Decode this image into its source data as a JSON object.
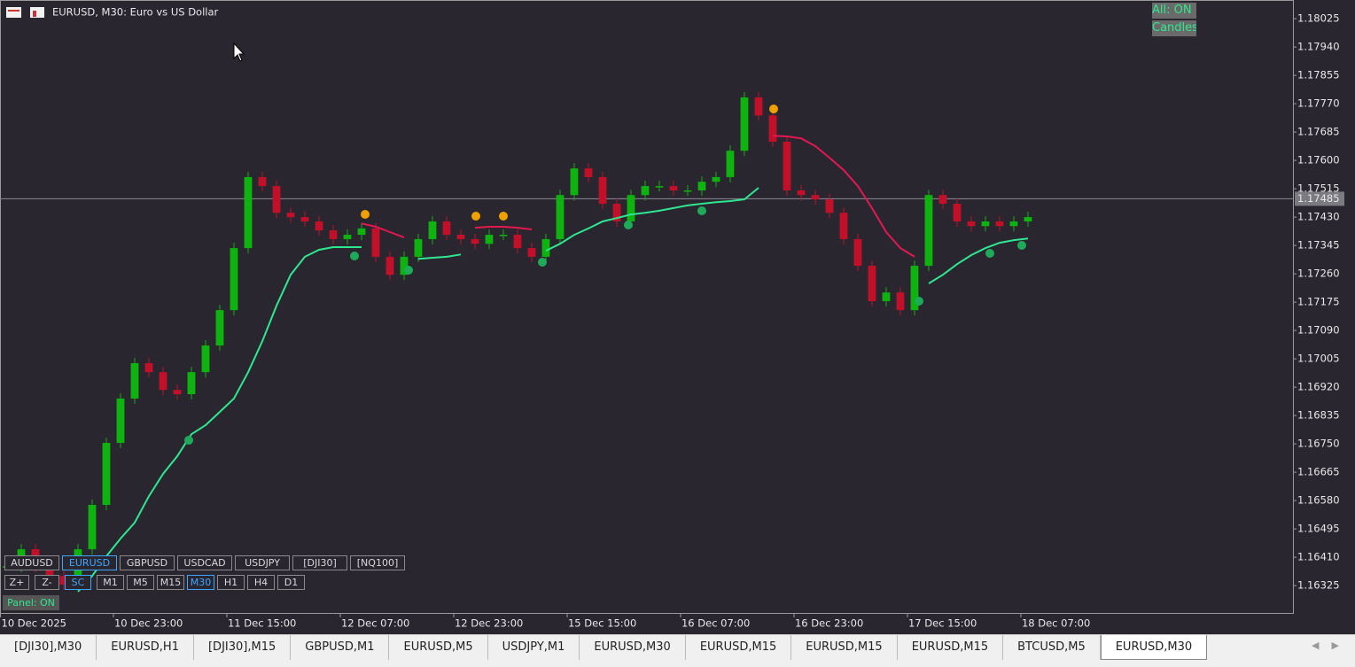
{
  "header": {
    "title": "EURUSD, M30:  Euro vs US Dollar"
  },
  "toggles": [
    "All: ON",
    "Candles"
  ],
  "chart_data": {
    "type": "candlestick",
    "close": [
      1.16381,
      1.16434,
      1.16381,
      1.16354,
      1.16328,
      1.16434,
      1.16567,
      1.16753,
      1.16886,
      1.16992,
      1.16965,
      1.16912,
      1.16899,
      1.16965,
      1.17045,
      1.17151,
      1.17337,
      1.1755,
      1.17523,
      1.17443,
      1.1743,
      1.17417,
      1.1739,
      1.17364,
      1.17377,
      1.17396,
      1.17311,
      1.17257,
      1.17311,
      1.17364,
      1.17417,
      1.17377,
      1.17364,
      1.1735,
      1.17377,
      1.17377,
      1.17337,
      1.17311,
      1.17364,
      1.17496,
      1.17576,
      1.1755,
      1.1747,
      1.17417,
      1.17496,
      1.17523,
      1.17523,
      1.1751,
      1.1751,
      1.17536,
      1.1755,
      1.17629,
      1.17789,
      1.17735,
      1.17656,
      1.1751,
      1.17496,
      1.17483,
      1.17443,
      1.17364,
      1.17284,
      1.17178,
      1.17204,
      1.17151,
      1.17284,
      1.17496,
      1.1747,
      1.17417,
      1.17403,
      1.17417,
      1.17403,
      1.17417,
      1.1743
    ],
    "up_color": "#0fb30f",
    "down_color": "#c3102a",
    "support": {
      "color": "#2ee88f",
      "values": [
        null,
        null,
        null,
        null,
        null,
        1.16307,
        1.16354,
        1.16413,
        1.16466,
        1.16514,
        1.16593,
        1.1666,
        1.16713,
        1.16779,
        1.16806,
        1.16846,
        1.16886,
        1.16965,
        1.17058,
        1.17164,
        1.17257,
        1.17311,
        1.17332,
        1.1734,
        1.1734,
        1.1734,
        null,
        null,
        null,
        1.17305,
        1.17308,
        1.17311,
        1.17318,
        null,
        null,
        null,
        null,
        null,
        1.17329,
        1.1735,
        1.17377,
        1.17396,
        1.17417,
        1.17427,
        1.17438,
        1.17443,
        1.17449,
        1.17457,
        1.17465,
        1.1747,
        1.17475,
        1.17478,
        1.17483,
        1.17518,
        null,
        null,
        null,
        null,
        null,
        null,
        null,
        null,
        null,
        null,
        null,
        1.17231,
        1.17257,
        1.17289,
        1.17316,
        1.17337,
        1.17353,
        1.17361,
        1.17366
      ]
    },
    "resistance": {
      "color": "#e3184f",
      "values": [
        null,
        null,
        null,
        null,
        null,
        null,
        null,
        null,
        null,
        null,
        null,
        null,
        null,
        null,
        null,
        null,
        null,
        null,
        null,
        null,
        null,
        null,
        null,
        null,
        null,
        1.17411,
        1.17401,
        1.17385,
        1.17369,
        null,
        null,
        null,
        null,
        1.17398,
        1.17401,
        1.17401,
        1.17398,
        1.17393,
        null,
        null,
        null,
        null,
        null,
        null,
        null,
        null,
        null,
        null,
        null,
        null,
        null,
        null,
        null,
        null,
        1.17674,
        1.17672,
        1.17666,
        1.17643,
        1.17608,
        1.17571,
        1.17523,
        1.17457,
        1.17385,
        1.17337,
        1.17311,
        null,
        null,
        null,
        null,
        null,
        null,
        null,
        null
      ]
    },
    "xlim": [
      -0.5,
      90.69
    ],
    "xticks": [
      {
        "value": -0.5,
        "label": "10 Dec 2025"
      },
      {
        "value": 7.5,
        "label": "10 Dec 23:00"
      },
      {
        "value": 15.5,
        "label": "11 Dec 15:00"
      },
      {
        "value": 23.5,
        "label": "12 Dec 07:00"
      },
      {
        "value": 31.5,
        "label": "12 Dec 23:00"
      },
      {
        "value": 39.5,
        "label": "15 Dec 15:00"
      },
      {
        "value": 47.5,
        "label": "16 Dec 07:00"
      },
      {
        "value": 55.5,
        "label": "16 Dec 23:00"
      },
      {
        "value": 63.5,
        "label": "17 Dec 15:00"
      },
      {
        "value": 71.5,
        "label": "18 Dec 07:00"
      }
    ],
    "ylim": [
      1.16243,
      1.18081
    ],
    "yticks": [
      {
        "value": 1.18025,
        "label": "1.18025"
      },
      {
        "value": 1.1794,
        "label": "1.17940"
      },
      {
        "value": 1.17855,
        "label": "1.17855"
      },
      {
        "value": 1.1777,
        "label": "1.17770"
      },
      {
        "value": 1.17685,
        "label": "1.17685"
      },
      {
        "value": 1.176,
        "label": "1.17600"
      },
      {
        "value": 1.17515,
        "label": "1.17515"
      },
      {
        "value": 1.1743,
        "label": "1.17430"
      },
      {
        "value": 1.17345,
        "label": "1.17345"
      },
      {
        "value": 1.1726,
        "label": "1.17260"
      },
      {
        "value": 1.17175,
        "label": "1.17175"
      },
      {
        "value": 1.1709,
        "label": "1.17090"
      },
      {
        "value": 1.17005,
        "label": "1.17005"
      },
      {
        "value": 1.1692,
        "label": "1.16920"
      },
      {
        "value": 1.16835,
        "label": "1.16835"
      },
      {
        "value": 1.1675,
        "label": "1.16750"
      },
      {
        "value": 1.16665,
        "label": "1.16665"
      },
      {
        "value": 1.1658,
        "label": "1.16580"
      },
      {
        "value": 1.16495,
        "label": "1.16495"
      },
      {
        "value": 1.1641,
        "label": "1.16410"
      },
      {
        "value": 1.16325,
        "label": "1.16325"
      }
    ],
    "current_price": {
      "value": 1.17485,
      "label": "1.17485"
    }
  },
  "symbols": [
    "AUDUSD",
    "EURUSD",
    "GBPUSD",
    "USDCAD",
    "USDJPY",
    "[DJI30]",
    "[NQ100]"
  ],
  "active_symbol": 1,
  "controls": [
    "Z+",
    "Z-",
    "SC"
  ],
  "timeframes": [
    "M1",
    "M5",
    "M15",
    "M30",
    "H1",
    "H4",
    "D1"
  ],
  "active_timeframe": 3,
  "panel": "Panel: ON",
  "tabs": [
    "[DJI30],M30",
    "EURUSD,H1",
    "[DJI30],M15",
    "GBPUSD,M1",
    "EURUSD,M5",
    "USDJPY,M1",
    "EURUSD,M30",
    "EURUSD,M15",
    "EURUSD,M15",
    "EURUSD,M15",
    "BTCUSD,M5",
    "EURUSD,M30"
  ],
  "active_tab": 11
}
